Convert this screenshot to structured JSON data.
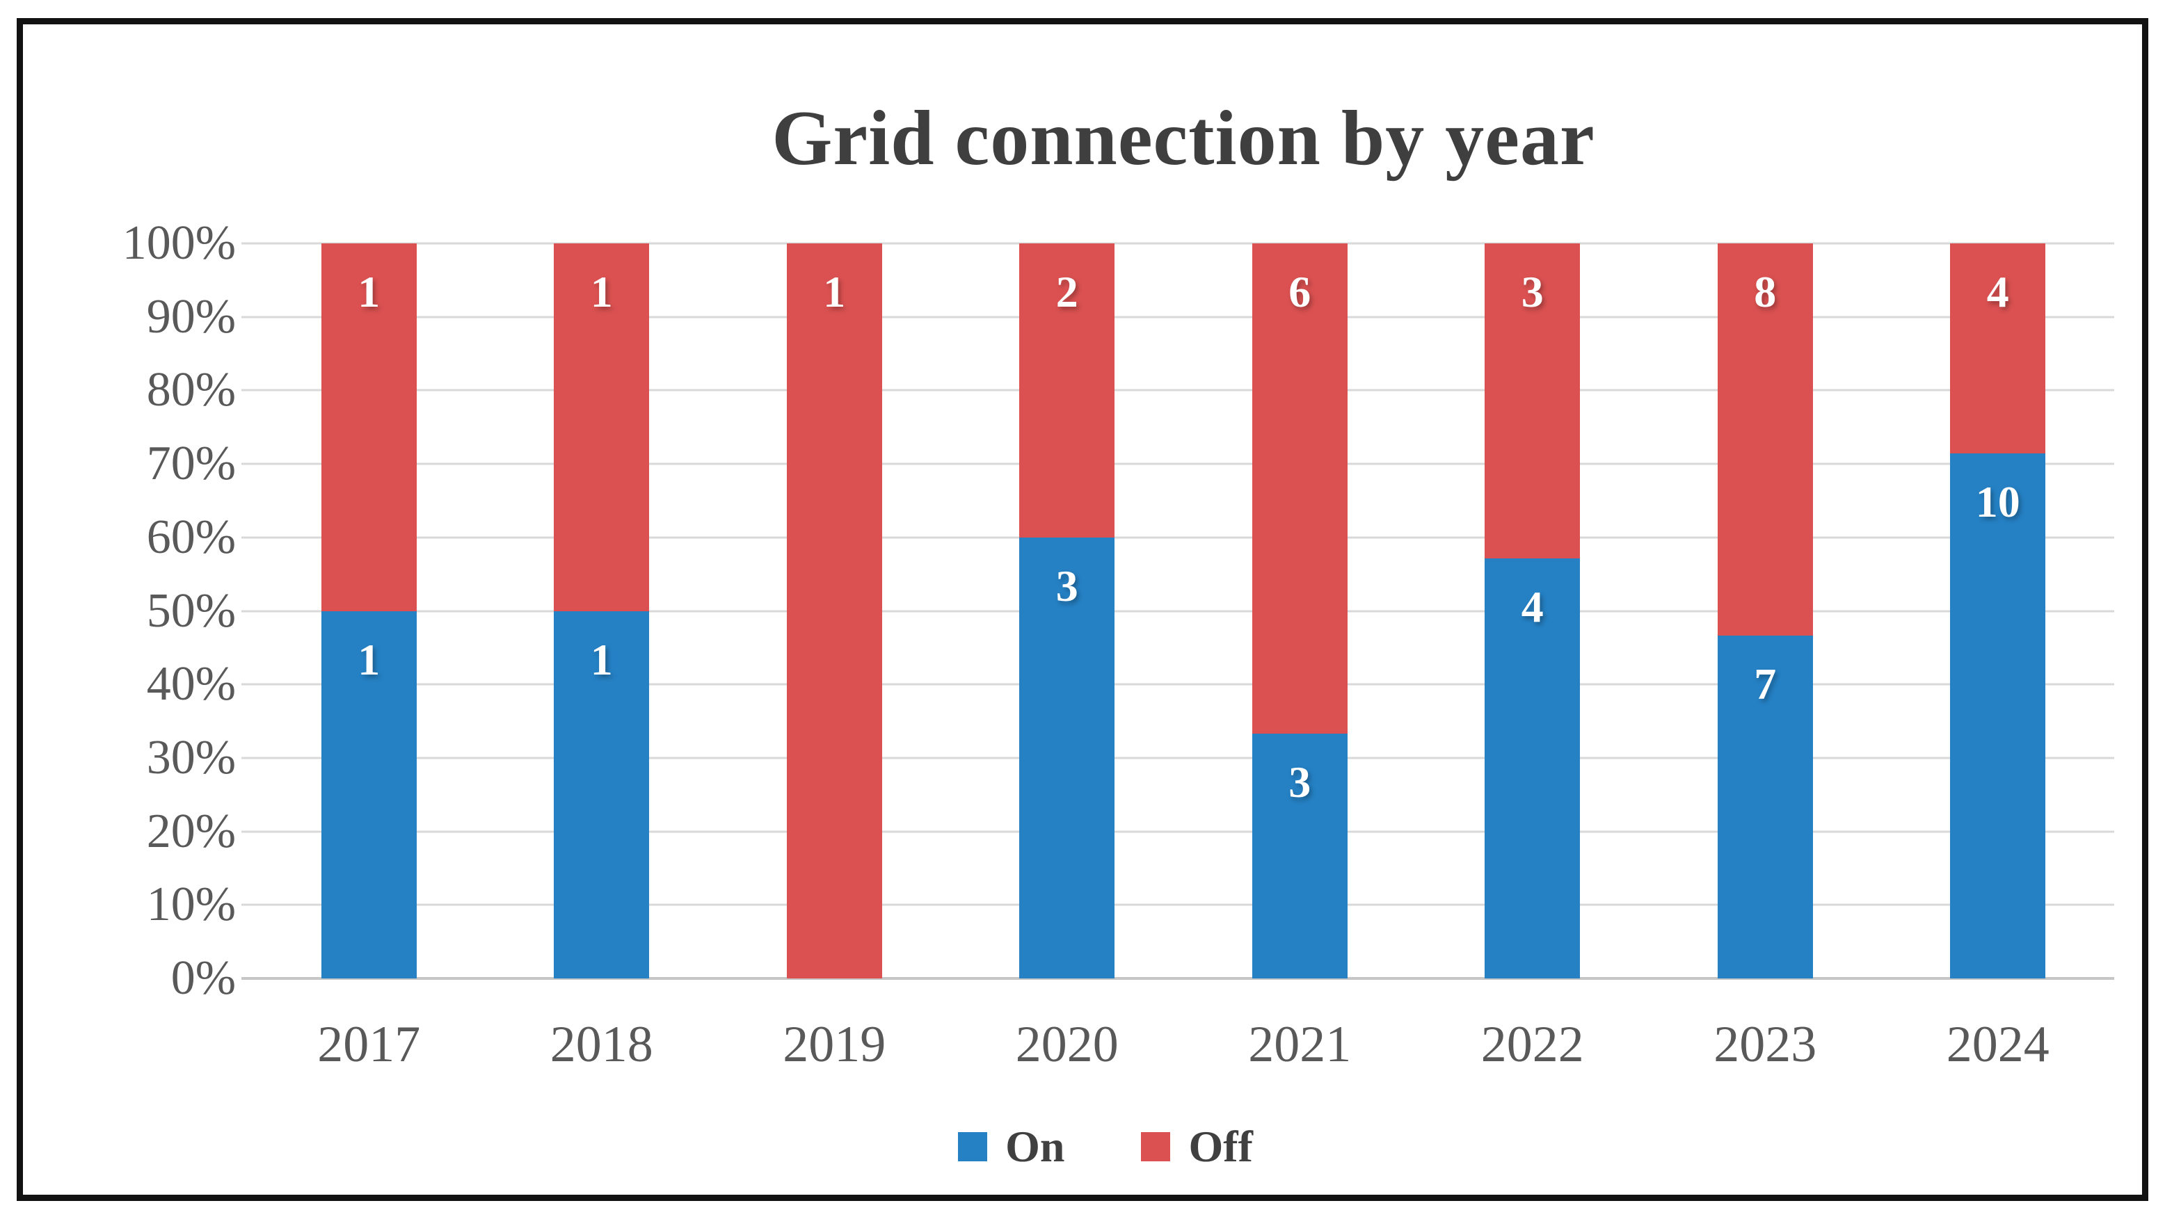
{
  "chart_data": {
    "type": "bar",
    "variant": "100%-stacked-column",
    "title": "Grid connection by year",
    "categories": [
      "2017",
      "2018",
      "2019",
      "2020",
      "2021",
      "2022",
      "2023",
      "2024"
    ],
    "series": [
      {
        "name": "On",
        "color": "#2581C4",
        "values": [
          1,
          1,
          0,
          3,
          3,
          4,
          7,
          10
        ]
      },
      {
        "name": "Off",
        "color": "#DB5151",
        "values": [
          1,
          1,
          1,
          2,
          6,
          3,
          8,
          4
        ]
      }
    ],
    "y_ticks": [
      "100%",
      "90%",
      "80%",
      "70%",
      "60%",
      "50%",
      "40%",
      "30%",
      "20%",
      "10%",
      "0%"
    ],
    "ylim": [
      0,
      100
    ],
    "xlabel": "",
    "ylabel": "",
    "grid": true,
    "gridline_color": "#D9D9D9",
    "axis_line_color": "#C6C6C6",
    "axis_text_color": "#595959",
    "title_color": "#3F3F3F",
    "data_label_color": "#FFFFFF",
    "legend_position": "bottom",
    "frame_border_color": "#121212",
    "background_color": "#FFFFFF"
  }
}
